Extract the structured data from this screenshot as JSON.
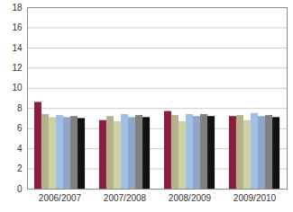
{
  "chart_data": {
    "type": "bar",
    "categories": [
      "2006/2007",
      "2007/2008",
      "2008/2009",
      "2009/2010"
    ],
    "series": [
      {
        "color": "#8c1c3e",
        "values": [
          8.6,
          6.8,
          7.7,
          7.2
        ]
      },
      {
        "color": "#b4b48c",
        "values": [
          7.4,
          7.2,
          7.3,
          7.3
        ]
      },
      {
        "color": "#cfcfa6",
        "values": [
          7.1,
          6.7,
          6.7,
          6.8
        ]
      },
      {
        "color": "#9fc0e4",
        "values": [
          7.3,
          7.4,
          7.4,
          7.5
        ]
      },
      {
        "color": "#8ea7c6",
        "values": [
          7.1,
          7.1,
          7.2,
          7.2
        ]
      },
      {
        "color": "#7f7f7f",
        "values": [
          7.2,
          7.3,
          7.4,
          7.3
        ]
      },
      {
        "color": "#111111",
        "values": [
          7.0,
          7.1,
          7.2,
          7.1
        ]
      }
    ],
    "ylim": [
      0,
      18
    ],
    "yticks": [
      0,
      2,
      4,
      6,
      8,
      10,
      12,
      14,
      16,
      18
    ],
    "grid": true
  }
}
